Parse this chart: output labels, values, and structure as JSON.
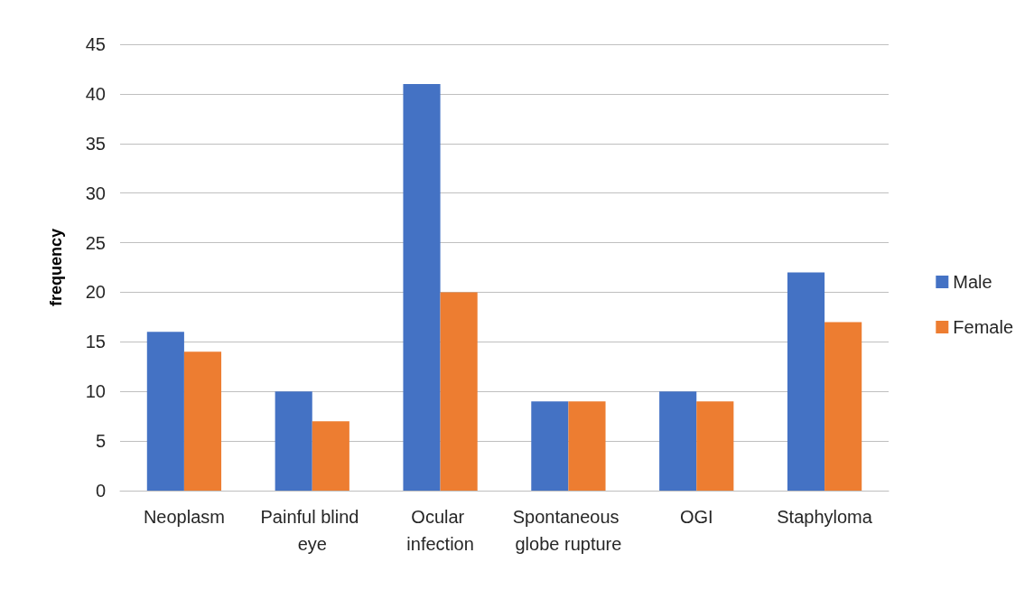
{
  "chart_data": {
    "type": "bar",
    "ylabel": "frequency",
    "categories": [
      "Neoplasm",
      "Painful blind eye",
      "Ocular infection",
      "Spontaneous globe rupture",
      "OGI",
      "Staphyloma"
    ],
    "series": [
      {
        "name": "Male",
        "color": "#4472c4",
        "values": [
          16,
          10,
          41,
          9,
          10,
          22
        ]
      },
      {
        "name": "Female",
        "color": "#ed7d31",
        "values": [
          14,
          7,
          20,
          9,
          9,
          17
        ]
      }
    ],
    "ylim": [
      0,
      45
    ],
    "yticks": [
      0,
      5,
      10,
      15,
      20,
      25,
      30,
      35,
      40,
      45
    ],
    "grid": "y",
    "legend": "right"
  }
}
